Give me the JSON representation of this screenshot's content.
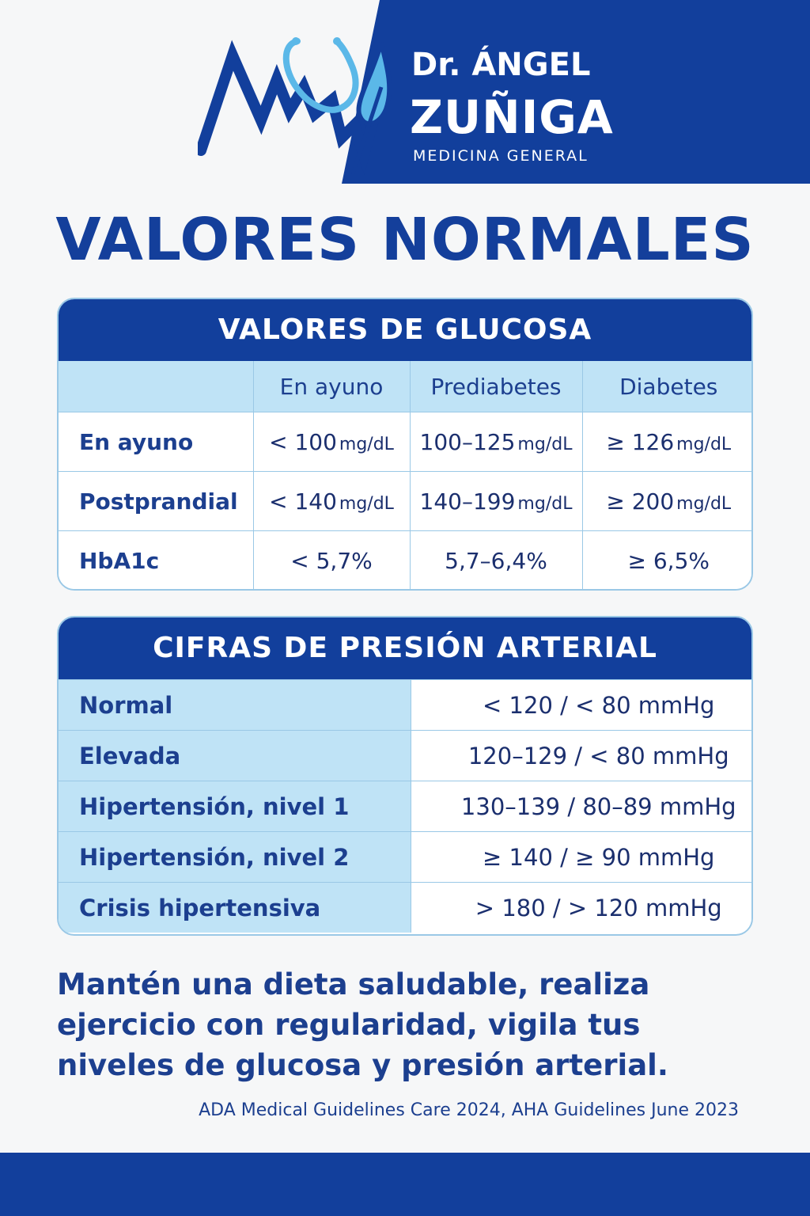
{
  "brand": {
    "name": "Dr. ÁNGEL",
    "surname": "ZUÑIGA",
    "specialty": "MEDICINA GENERAL",
    "logo_icon": "stethoscope-heartbeat-icon"
  },
  "title": "VALORES NORMALES",
  "glucose": {
    "heading": "VALORES DE GLUCOSA",
    "columns": [
      "",
      "En ayuno",
      "Prediabetes",
      "Diabetes"
    ],
    "rows": [
      {
        "label": "En ayuno",
        "normal": "< 100",
        "normal_unit": "mg/dL",
        "pre": "100–125",
        "pre_unit": "mg/dL",
        "dia": "≥ 126",
        "dia_unit": "mg/dL"
      },
      {
        "label": "Postprandial",
        "normal": "< 140",
        "normal_unit": "mg/dL",
        "pre": "140–199",
        "pre_unit": "mg/dL",
        "dia": "≥ 200",
        "dia_unit": "mg/dL"
      },
      {
        "label": "HbA1c",
        "normal": "< 5,7%",
        "pre": "5,7–6,4%",
        "dia": "≥ 6,5%"
      }
    ]
  },
  "blood_pressure": {
    "heading": "CIFRAS DE PRESIÓN ARTERIAL",
    "rows": [
      {
        "label": "Normal",
        "value": "< 120 / < 80 mmHg"
      },
      {
        "label": "Elevada",
        "value": "120–129 / < 80 mmHg"
      },
      {
        "label": "Hipertensión, nivel 1",
        "value": "130–139 / 80–89 mmHg"
      },
      {
        "label": "Hipertensión, nivel 2",
        "value": "≥ 140 / ≥ 90 mmHg"
      },
      {
        "label": "Crisis hipertensiva",
        "value": "> 180 / > 120 mmHg"
      }
    ]
  },
  "advice": "Mantén una dieta saludable, realiza ejercicio con regularidad, vigila tus niveles de glucosa y presión arterial.",
  "source": "ADA Medical Guidelines Care 2024, AHA Guidelines June 2023",
  "colors": {
    "primary": "#123f9c",
    "light": "#bfe3f6",
    "accent": "#5bb8e8"
  }
}
